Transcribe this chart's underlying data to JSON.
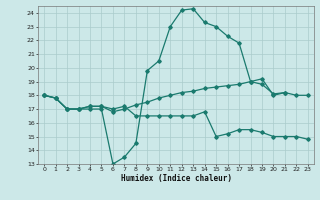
{
  "title": "",
  "xlabel": "Humidex (Indice chaleur)",
  "bg_color": "#cce8e8",
  "line_color": "#1a7a6e",
  "grid_color": "#aacccc",
  "xlim": [
    -0.5,
    23.5
  ],
  "ylim": [
    13,
    24.5
  ],
  "xticks": [
    0,
    1,
    2,
    3,
    4,
    5,
    6,
    7,
    8,
    9,
    10,
    11,
    12,
    13,
    14,
    15,
    16,
    17,
    18,
    19,
    20,
    21,
    22,
    23
  ],
  "yticks": [
    13,
    14,
    15,
    16,
    17,
    18,
    19,
    20,
    21,
    22,
    23,
    24
  ],
  "line1_x": [
    0,
    1,
    2,
    3,
    4,
    5,
    6,
    7,
    8,
    9,
    10,
    11,
    12,
    13,
    14,
    15,
    16,
    17,
    18,
    19,
    20,
    21
  ],
  "line1_y": [
    18,
    17.8,
    17,
    17,
    17,
    17,
    13,
    13.5,
    14.5,
    19.8,
    20.5,
    23.0,
    24.2,
    24.3,
    23.3,
    23.0,
    22.3,
    21.8,
    19.0,
    18.8,
    18.1,
    18.2
  ],
  "line2_x": [
    0,
    1,
    2,
    3,
    4,
    5,
    6,
    7,
    8,
    9,
    10,
    11,
    12,
    13,
    14,
    15,
    16,
    17,
    18,
    19,
    20,
    21,
    22,
    23
  ],
  "line2_y": [
    18,
    17.8,
    17,
    17,
    17.2,
    17.2,
    16.8,
    17.0,
    17.3,
    17.5,
    17.8,
    18.0,
    18.2,
    18.3,
    18.5,
    18.6,
    18.7,
    18.8,
    19.0,
    19.2,
    18.0,
    18.2,
    18.0,
    18.0
  ],
  "line3_x": [
    0,
    1,
    2,
    3,
    4,
    5,
    6,
    7,
    8,
    9,
    10,
    11,
    12,
    13,
    14,
    15,
    16,
    17,
    18,
    19,
    20,
    21,
    22,
    23
  ],
  "line3_y": [
    18,
    17.8,
    17,
    17,
    17.2,
    17.2,
    17.0,
    17.2,
    16.5,
    16.5,
    16.5,
    16.5,
    16.5,
    16.5,
    16.8,
    15.0,
    15.2,
    15.5,
    15.5,
    15.3,
    15.0,
    15.0,
    15.0,
    14.8
  ]
}
